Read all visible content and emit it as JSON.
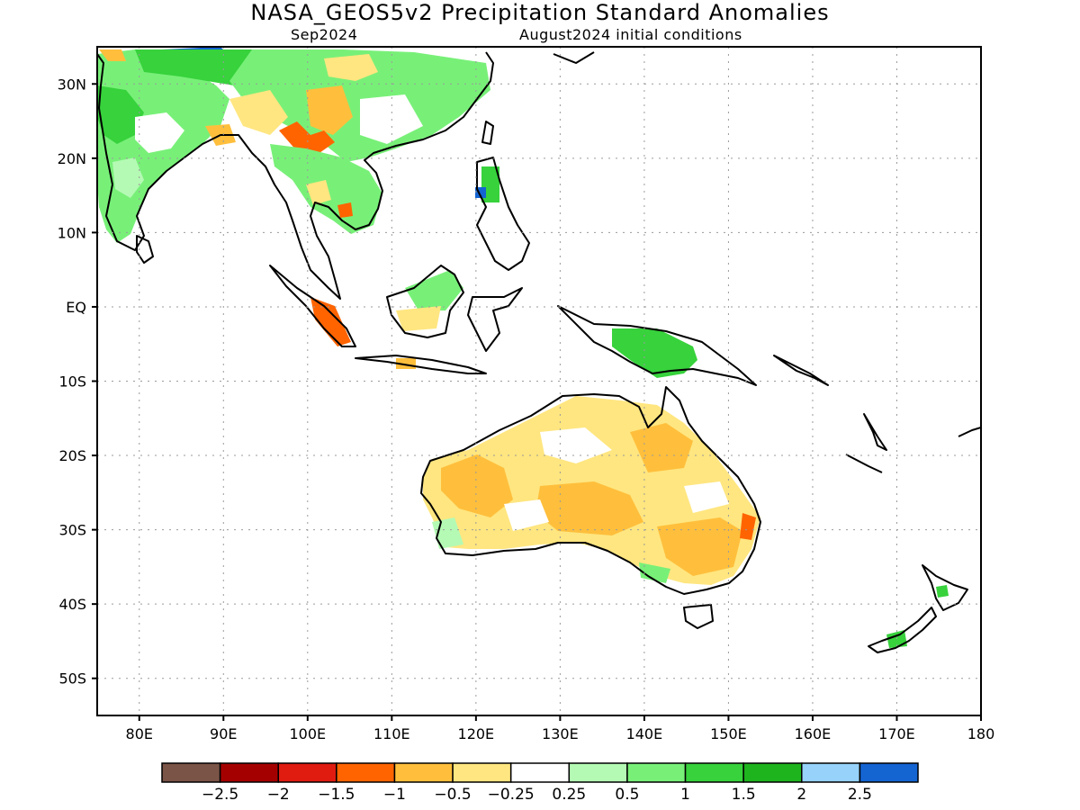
{
  "header": {
    "title": "NASA_GEOS5v2 Precipitation Standard Anomalies",
    "valid_month": "Sep2024",
    "init_conditions": "August2024 initial conditions"
  },
  "map": {
    "lon_range": [
      75,
      180
    ],
    "lat_range": [
      -55,
      35
    ],
    "lat_ticks": [
      {
        "value": 30,
        "label": "30N"
      },
      {
        "value": 20,
        "label": "20N"
      },
      {
        "value": 10,
        "label": "10N"
      },
      {
        "value": 0,
        "label": "EQ"
      },
      {
        "value": -10,
        "label": "10S"
      },
      {
        "value": -20,
        "label": "20S"
      },
      {
        "value": -30,
        "label": "30S"
      },
      {
        "value": -40,
        "label": "40S"
      },
      {
        "value": -50,
        "label": "50S"
      }
    ],
    "lon_ticks": [
      {
        "value": 80,
        "label": "80E"
      },
      {
        "value": 90,
        "label": "90E"
      },
      {
        "value": 100,
        "label": "100E"
      },
      {
        "value": 110,
        "label": "110E"
      },
      {
        "value": 120,
        "label": "120E"
      },
      {
        "value": 130,
        "label": "130E"
      },
      {
        "value": 140,
        "label": "140E"
      },
      {
        "value": 150,
        "label": "150E"
      },
      {
        "value": 160,
        "label": "160E"
      },
      {
        "value": 170,
        "label": "170E"
      },
      {
        "value": 180,
        "label": "180"
      }
    ],
    "grid": true
  },
  "colorbar": {
    "colors": [
      "#7a5447",
      "#a50000",
      "#e01b0f",
      "#ff6400",
      "#ffbf3c",
      "#ffe680",
      "#ffffff",
      "#b4fab4",
      "#78f078",
      "#37d23c",
      "#1eb41e",
      "#96d2fa",
      "#1464d2"
    ],
    "labels": [
      "−2.5",
      "−2",
      "−1.5",
      "−1",
      "−0.5",
      "−0.25",
      "0.25",
      "0.5",
      "1",
      "1.5",
      "2",
      "2.5"
    ]
  }
}
